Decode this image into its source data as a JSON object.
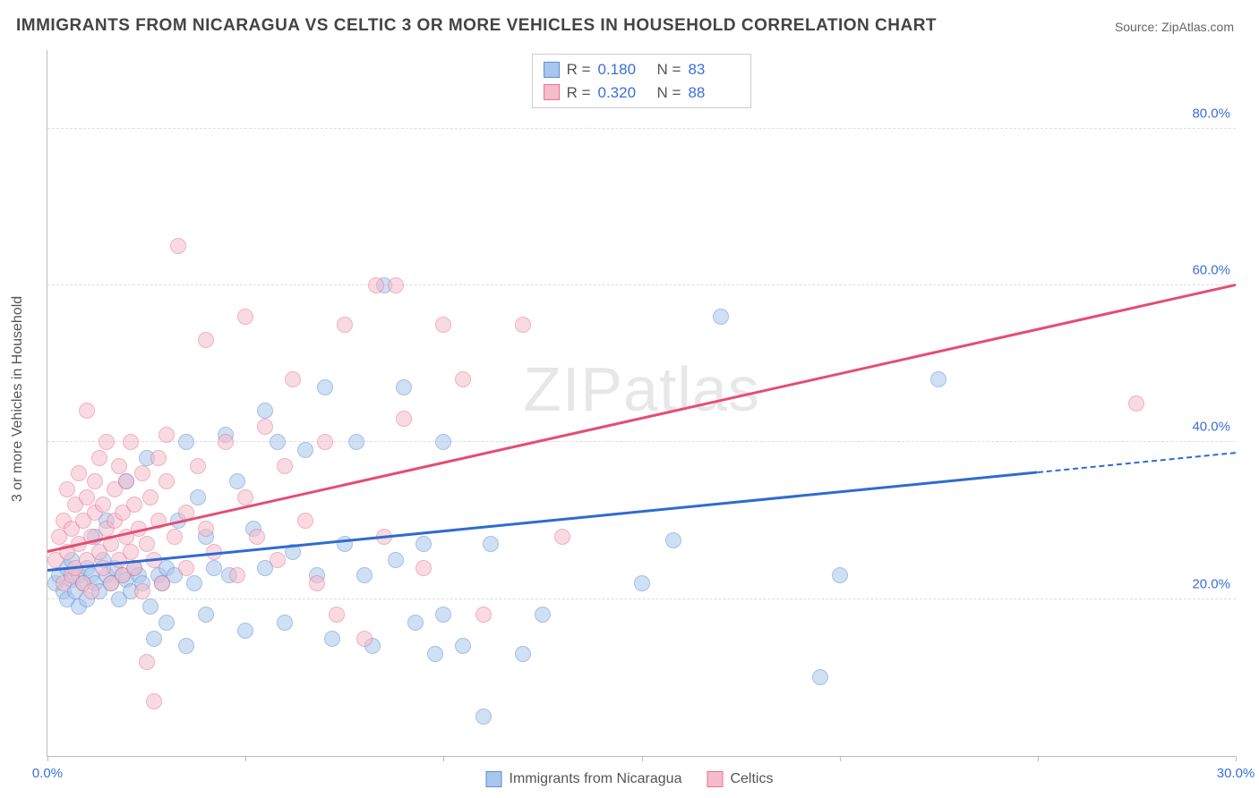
{
  "title": "IMMIGRANTS FROM NICARAGUA VS CELTIC 3 OR MORE VEHICLES IN HOUSEHOLD CORRELATION CHART",
  "source": "Source: ZipAtlas.com",
  "ylabel": "3 or more Vehicles in Household",
  "watermark": "ZIPatlas",
  "chart": {
    "type": "scatter",
    "xlim": [
      0,
      30
    ],
    "ylim": [
      0,
      90
    ],
    "x_ticks": [
      0,
      5,
      10,
      15,
      20,
      25,
      30
    ],
    "x_tick_labels": {
      "0": "0.0%",
      "30": "30.0%"
    },
    "y_ticks": [
      20,
      40,
      60,
      80
    ],
    "y_tick_labels": {
      "20": "20.0%",
      "40": "40.0%",
      "60": "60.0%",
      "80": "80.0%"
    },
    "grid_color": "#dddddd",
    "axis_color": "#bbbbbb",
    "background_color": "#ffffff",
    "tick_label_color": "#3a6fd8",
    "point_radius": 9,
    "point_opacity": 0.55,
    "series": [
      {
        "name": "Immigrants from Nicaragua",
        "color_fill": "#a9c6ec",
        "color_stroke": "#5b8fd6",
        "R": "0.180",
        "N": "83",
        "trend": {
          "x1": 0,
          "y1": 23.5,
          "x2": 25,
          "y2": 36,
          "dash_to_x": 30,
          "dash_to_y": 38.5,
          "color": "#2f6bd0"
        },
        "points": [
          [
            0.2,
            22
          ],
          [
            0.3,
            23
          ],
          [
            0.4,
            21
          ],
          [
            0.5,
            24
          ],
          [
            0.5,
            20
          ],
          [
            0.6,
            22.5
          ],
          [
            0.6,
            25
          ],
          [
            0.7,
            21
          ],
          [
            0.8,
            23
          ],
          [
            0.8,
            19
          ],
          [
            0.9,
            22
          ],
          [
            1.0,
            24
          ],
          [
            1.0,
            20
          ],
          [
            1.1,
            23
          ],
          [
            1.2,
            22
          ],
          [
            1.2,
            28
          ],
          [
            1.3,
            21
          ],
          [
            1.4,
            25
          ],
          [
            1.5,
            23
          ],
          [
            1.5,
            30
          ],
          [
            1.6,
            22
          ],
          [
            1.7,
            24
          ],
          [
            1.8,
            20
          ],
          [
            1.9,
            23
          ],
          [
            2.0,
            22.5
          ],
          [
            2.0,
            35
          ],
          [
            2.1,
            21
          ],
          [
            2.2,
            24
          ],
          [
            2.3,
            23
          ],
          [
            2.4,
            22
          ],
          [
            2.5,
            38
          ],
          [
            2.6,
            19
          ],
          [
            2.7,
            15
          ],
          [
            2.8,
            23
          ],
          [
            2.9,
            22
          ],
          [
            3.0,
            24
          ],
          [
            3.0,
            17
          ],
          [
            3.2,
            23
          ],
          [
            3.3,
            30
          ],
          [
            3.5,
            14
          ],
          [
            3.5,
            40
          ],
          [
            3.7,
            22
          ],
          [
            3.8,
            33
          ],
          [
            4.0,
            28
          ],
          [
            4.0,
            18
          ],
          [
            4.2,
            24
          ],
          [
            4.5,
            41
          ],
          [
            4.6,
            23
          ],
          [
            4.8,
            35
          ],
          [
            5.0,
            16
          ],
          [
            5.2,
            29
          ],
          [
            5.5,
            24
          ],
          [
            5.5,
            44
          ],
          [
            5.8,
            40
          ],
          [
            6.0,
            17
          ],
          [
            6.2,
            26
          ],
          [
            6.5,
            39
          ],
          [
            6.8,
            23
          ],
          [
            7.0,
            47
          ],
          [
            7.2,
            15
          ],
          [
            7.5,
            27
          ],
          [
            7.8,
            40
          ],
          [
            8.0,
            23
          ],
          [
            8.2,
            14
          ],
          [
            8.5,
            60
          ],
          [
            8.8,
            25
          ],
          [
            9.0,
            47
          ],
          [
            9.3,
            17
          ],
          [
            9.5,
            27
          ],
          [
            9.8,
            13
          ],
          [
            10.0,
            40
          ],
          [
            10.0,
            18
          ],
          [
            10.5,
            14
          ],
          [
            11.0,
            5
          ],
          [
            11.2,
            27
          ],
          [
            12.0,
            13
          ],
          [
            12.5,
            18
          ],
          [
            15.0,
            22
          ],
          [
            15.8,
            27.5
          ],
          [
            17.0,
            56
          ],
          [
            19.5,
            10
          ],
          [
            22.5,
            48
          ],
          [
            20.0,
            23
          ]
        ]
      },
      {
        "name": "Celtics",
        "color_fill": "#f5bccb",
        "color_stroke": "#e7728f",
        "R": "0.320",
        "N": "88",
        "trend": {
          "x1": 0,
          "y1": 26,
          "x2": 30,
          "y2": 60,
          "color": "#e54d73"
        },
        "points": [
          [
            0.2,
            25
          ],
          [
            0.3,
            28
          ],
          [
            0.4,
            22
          ],
          [
            0.4,
            30
          ],
          [
            0.5,
            26
          ],
          [
            0.5,
            34
          ],
          [
            0.6,
            23
          ],
          [
            0.6,
            29
          ],
          [
            0.7,
            32
          ],
          [
            0.7,
            24
          ],
          [
            0.8,
            27
          ],
          [
            0.8,
            36
          ],
          [
            0.9,
            22
          ],
          [
            0.9,
            30
          ],
          [
            1.0,
            25
          ],
          [
            1.0,
            33
          ],
          [
            1.0,
            44
          ],
          [
            1.1,
            28
          ],
          [
            1.1,
            21
          ],
          [
            1.2,
            35
          ],
          [
            1.2,
            31
          ],
          [
            1.3,
            26
          ],
          [
            1.3,
            38
          ],
          [
            1.4,
            24
          ],
          [
            1.4,
            32
          ],
          [
            1.5,
            29
          ],
          [
            1.5,
            40
          ],
          [
            1.6,
            27
          ],
          [
            1.6,
            22
          ],
          [
            1.7,
            34
          ],
          [
            1.7,
            30
          ],
          [
            1.8,
            25
          ],
          [
            1.8,
            37
          ],
          [
            1.9,
            23
          ],
          [
            1.9,
            31
          ],
          [
            2.0,
            28
          ],
          [
            2.0,
            35
          ],
          [
            2.1,
            26
          ],
          [
            2.1,
            40
          ],
          [
            2.2,
            24
          ],
          [
            2.2,
            32
          ],
          [
            2.3,
            29
          ],
          [
            2.4,
            21
          ],
          [
            2.4,
            36
          ],
          [
            2.5,
            27
          ],
          [
            2.5,
            12
          ],
          [
            2.6,
            33
          ],
          [
            2.7,
            25
          ],
          [
            2.7,
            7
          ],
          [
            2.8,
            38
          ],
          [
            2.8,
            30
          ],
          [
            2.9,
            22
          ],
          [
            3.0,
            35
          ],
          [
            3.0,
            41
          ],
          [
            3.2,
            28
          ],
          [
            3.3,
            65
          ],
          [
            3.5,
            31
          ],
          [
            3.5,
            24
          ],
          [
            3.8,
            37
          ],
          [
            4.0,
            29
          ],
          [
            4.0,
            53
          ],
          [
            4.2,
            26
          ],
          [
            4.5,
            40
          ],
          [
            4.8,
            23
          ],
          [
            5.0,
            33
          ],
          [
            5.0,
            56
          ],
          [
            5.3,
            28
          ],
          [
            5.5,
            42
          ],
          [
            5.8,
            25
          ],
          [
            6.0,
            37
          ],
          [
            6.2,
            48
          ],
          [
            6.5,
            30
          ],
          [
            6.8,
            22
          ],
          [
            7.0,
            40
          ],
          [
            7.3,
            18
          ],
          [
            7.5,
            55
          ],
          [
            8.0,
            15
          ],
          [
            8.3,
            60
          ],
          [
            8.5,
            28
          ],
          [
            8.8,
            60
          ],
          [
            9.0,
            43
          ],
          [
            9.5,
            24
          ],
          [
            10.0,
            55
          ],
          [
            10.5,
            48
          ],
          [
            11.0,
            18
          ],
          [
            12.0,
            55
          ],
          [
            13.0,
            28
          ],
          [
            27.5,
            45
          ]
        ]
      }
    ]
  },
  "bottom_legend": [
    {
      "label": "Immigrants from Nicaragua",
      "fill": "#a9c6ec",
      "stroke": "#5b8fd6"
    },
    {
      "label": "Celtics",
      "fill": "#f5bccb",
      "stroke": "#e7728f"
    }
  ]
}
